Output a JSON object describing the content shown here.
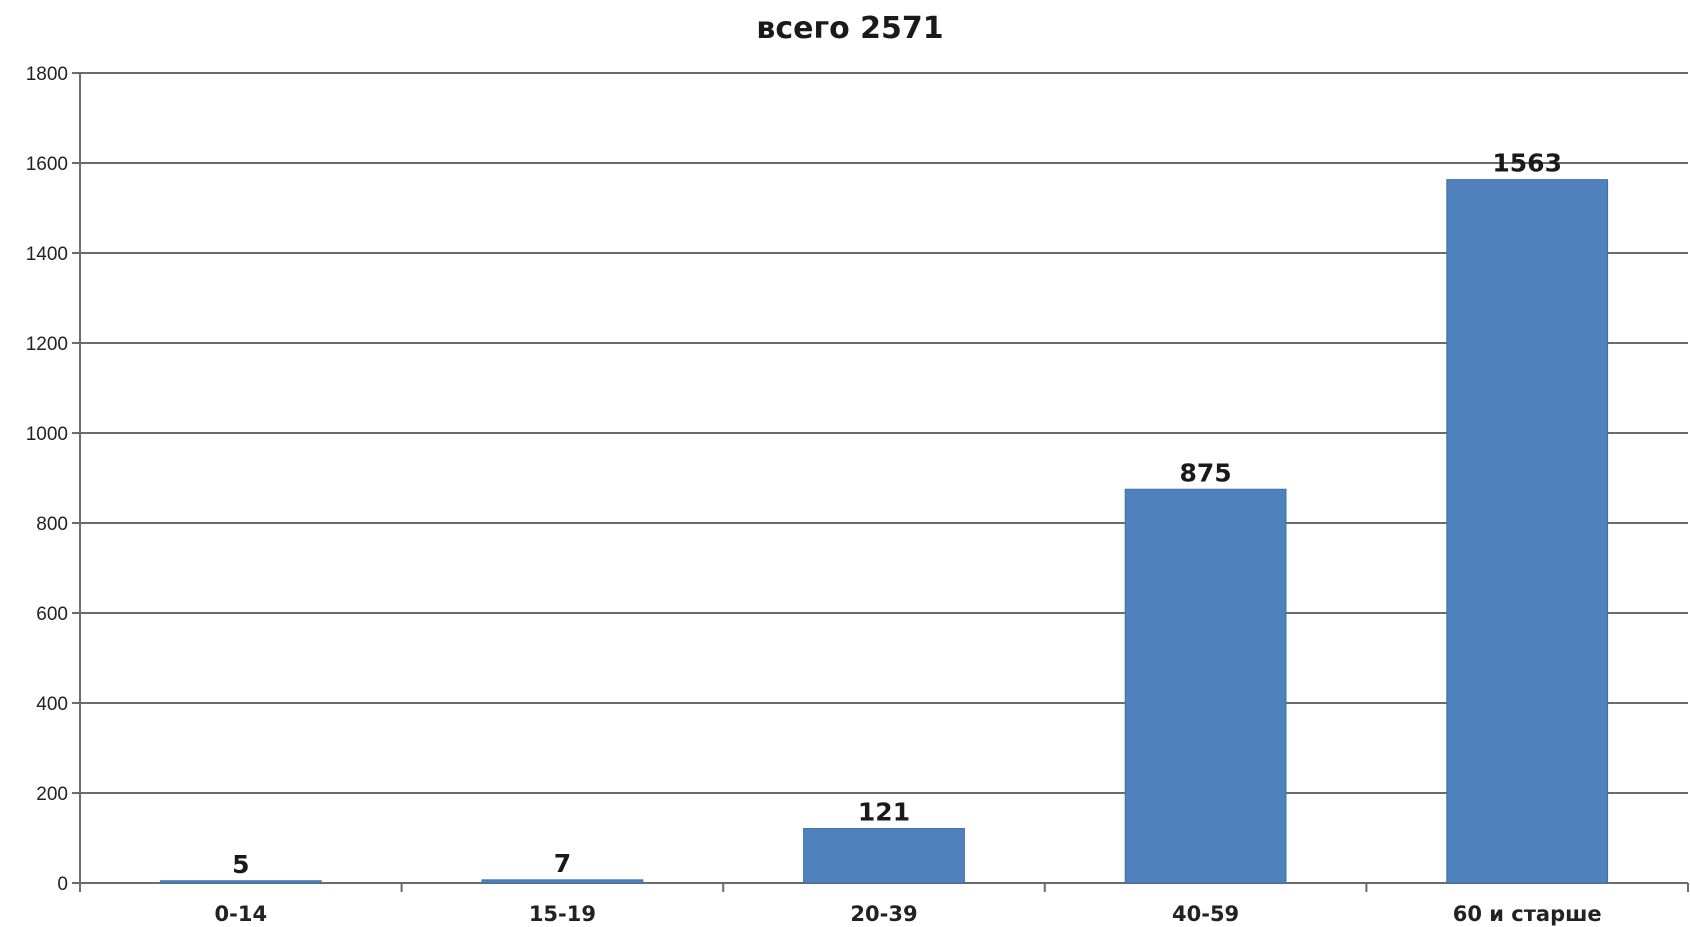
{
  "chart_data": {
    "type": "bar",
    "title": "всего 2571",
    "xlabel": "",
    "ylabel": "",
    "categories": [
      "0-14",
      "15-19",
      "20-39",
      "40-59",
      "60 и старше"
    ],
    "values": [
      5,
      7,
      121,
      875,
      1563
    ],
    "data_labels": [
      "5",
      "7",
      "121",
      "875",
      "1563"
    ],
    "ylim": [
      0,
      1800
    ],
    "yticks": [
      0,
      200,
      400,
      600,
      800,
      1000,
      1200,
      1400,
      1600,
      1800
    ],
    "grid": true,
    "legend": "none",
    "colors": {
      "bar": "#4f81bd",
      "bar_edge": "#3f6fa8",
      "grid": "#6b6b6b",
      "axis": "#6b6b6b"
    }
  }
}
